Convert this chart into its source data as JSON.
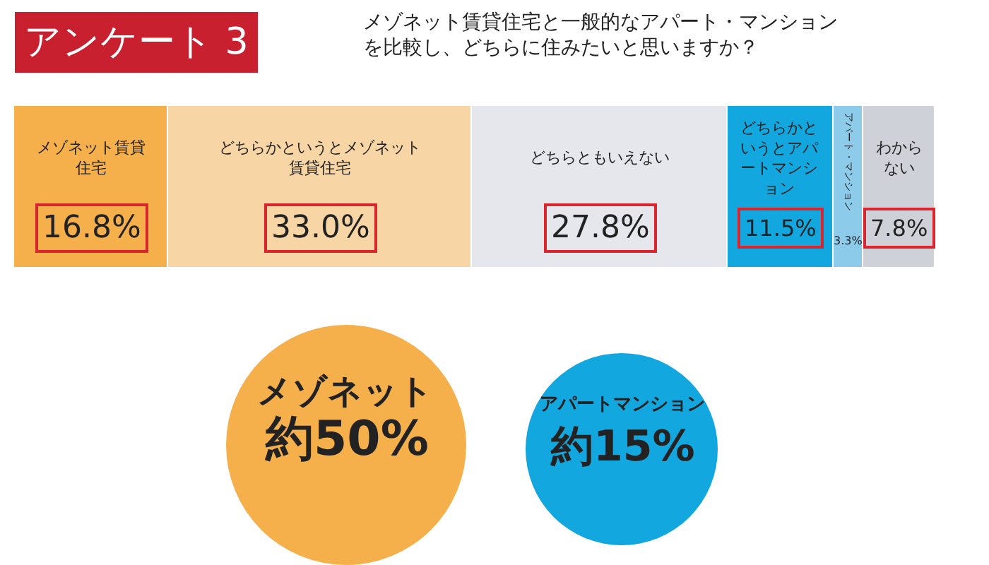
{
  "chart_data": {
    "type": "bar",
    "orientation": "horizontal",
    "stacked": true,
    "title": "アンケート 3",
    "subtitle": "メゾネット賃貸住宅と一般的なアパート・マンションを比較し、どちらに住みたいと思いますか？",
    "categories": [
      null
    ],
    "xlim": [
      0,
      100.2
    ],
    "tick_labels": false,
    "legend": false,
    "series": [
      {
        "name": "メゾネット賃貸住宅",
        "color": "#f5b04c",
        "values": [
          16.8
        ],
        "value_labels": [
          "16.8%"
        ]
      },
      {
        "name": "どちらかというとメゾネット賃貸住宅",
        "color": "#f8d5a4",
        "values": [
          33.0
        ],
        "value_labels": [
          "33.0%"
        ]
      },
      {
        "name": "どちらともいえない",
        "color": "#e6e7ec",
        "values": [
          27.8
        ],
        "value_labels": [
          "27.8%"
        ]
      },
      {
        "name": "どちらかというとアパートマンション",
        "color": "#12a7df",
        "values": [
          11.5
        ],
        "value_labels": [
          "11.5%"
        ]
      },
      {
        "name": "アパート・マンション",
        "color": "#8ccbea",
        "values": [
          3.3
        ],
        "value_labels": [
          "3.3%"
        ]
      },
      {
        "name": "わからない",
        "color": "#cfd1d8",
        "values": [
          7.8
        ],
        "value_labels": [
          "7.8%"
        ]
      }
    ],
    "annotations": [
      "メゾネット",
      "約50%",
      "アパートマンション",
      "約15%"
    ]
  }
}
